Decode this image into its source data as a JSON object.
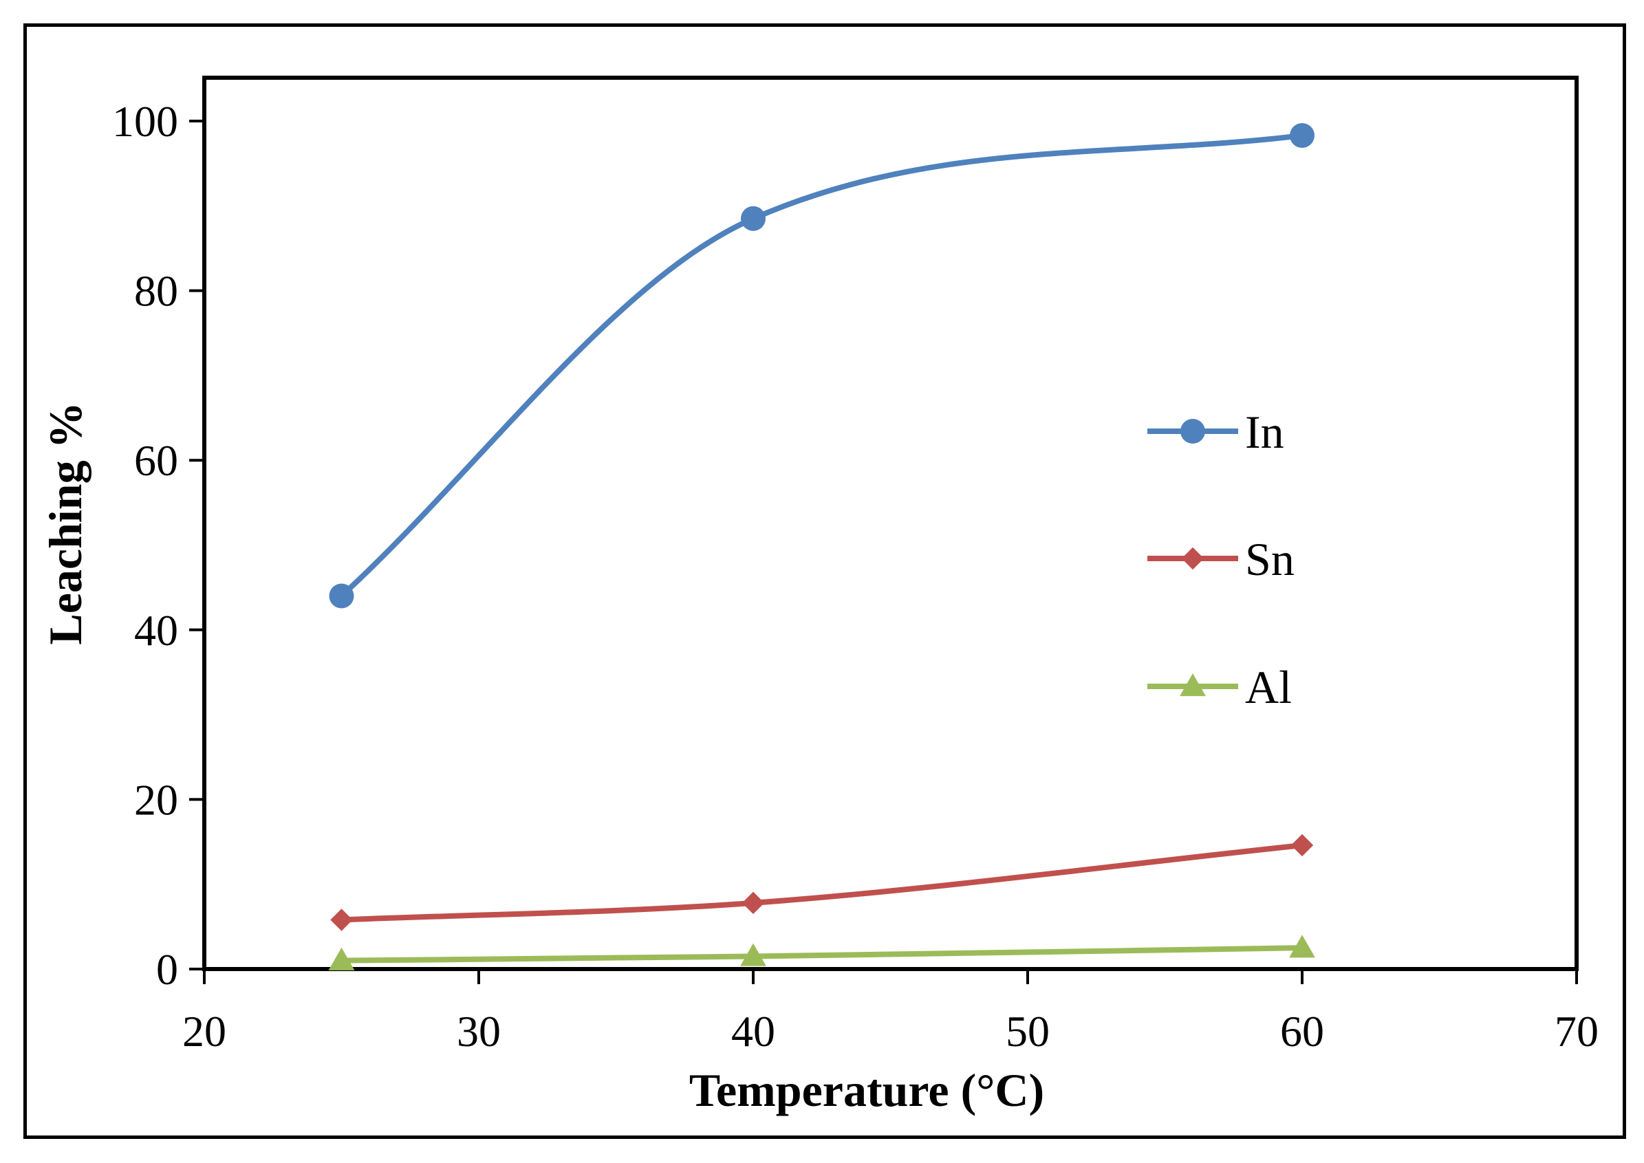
{
  "chart_data": {
    "type": "line",
    "title": "",
    "xlabel": "Temperature (°C)",
    "ylabel": "Leaching %",
    "xlim": [
      20,
      70
    ],
    "ylim": [
      0,
      100
    ],
    "xticks": [
      20,
      30,
      40,
      50,
      60,
      70
    ],
    "yticks": [
      0,
      20,
      40,
      60,
      80,
      100
    ],
    "x": [
      25,
      40,
      60
    ],
    "legend_position": "center-right",
    "series": [
      {
        "name": "In",
        "values": [
          44.0,
          88.5,
          98.3
        ],
        "color": "#4f81bd",
        "marker": "circle"
      },
      {
        "name": "Sn",
        "values": [
          5.8,
          7.8,
          14.6
        ],
        "color": "#c0504d",
        "marker": "diamond"
      },
      {
        "name": "Al",
        "values": [
          1.0,
          1.5,
          2.5
        ],
        "color": "#9bbb59",
        "marker": "triangle"
      }
    ]
  }
}
